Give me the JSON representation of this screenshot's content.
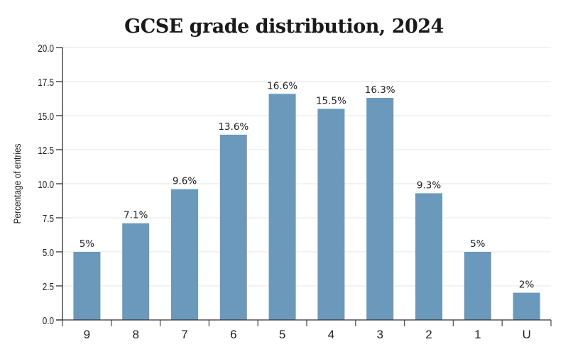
{
  "chart_data": {
    "type": "bar",
    "title": "GCSE grade distribution, 2024",
    "xlabel": "",
    "ylabel": "Percentage of entries",
    "categories": [
      "9",
      "8",
      "7",
      "6",
      "5",
      "4",
      "3",
      "2",
      "1",
      "U"
    ],
    "values": [
      5,
      7.1,
      9.6,
      13.6,
      16.6,
      15.5,
      16.3,
      9.3,
      5,
      2
    ],
    "data_labels": [
      "5%",
      "7.1%",
      "9.6%",
      "13.6%",
      "16.6%",
      "15.5%",
      "16.3%",
      "9.3%",
      "5%",
      "2%"
    ],
    "ylim": [
      0,
      20
    ],
    "yticks": [
      "0.0",
      "2.5",
      "5.0",
      "7.5",
      "10.0",
      "12.5",
      "15.0",
      "17.5",
      "20.0"
    ],
    "grid": true,
    "bar_color": "#6a99bb"
  }
}
